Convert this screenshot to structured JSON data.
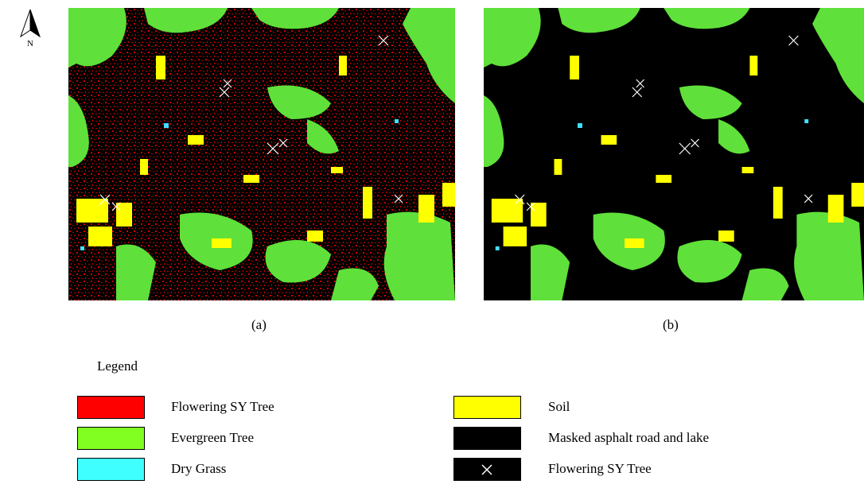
{
  "north_arrow": {
    "label": "N"
  },
  "panels": [
    {
      "label": "(a)"
    },
    {
      "label": "(b)"
    }
  ],
  "legend": {
    "title": "Legend",
    "items": [
      {
        "label": "Flowering SY Tree",
        "color": "#ff0000"
      },
      {
        "label": "Evergreen Tree",
        "color": "#80ff20"
      },
      {
        "label": "Dry Grass",
        "color": "#40ffff"
      },
      {
        "label": "Soil",
        "color": "#ffff00"
      },
      {
        "label": "Masked asphalt road and lake",
        "color": "#000000"
      },
      {
        "label": "Flowering SY Tree",
        "color": "#000000"
      }
    ]
  }
}
